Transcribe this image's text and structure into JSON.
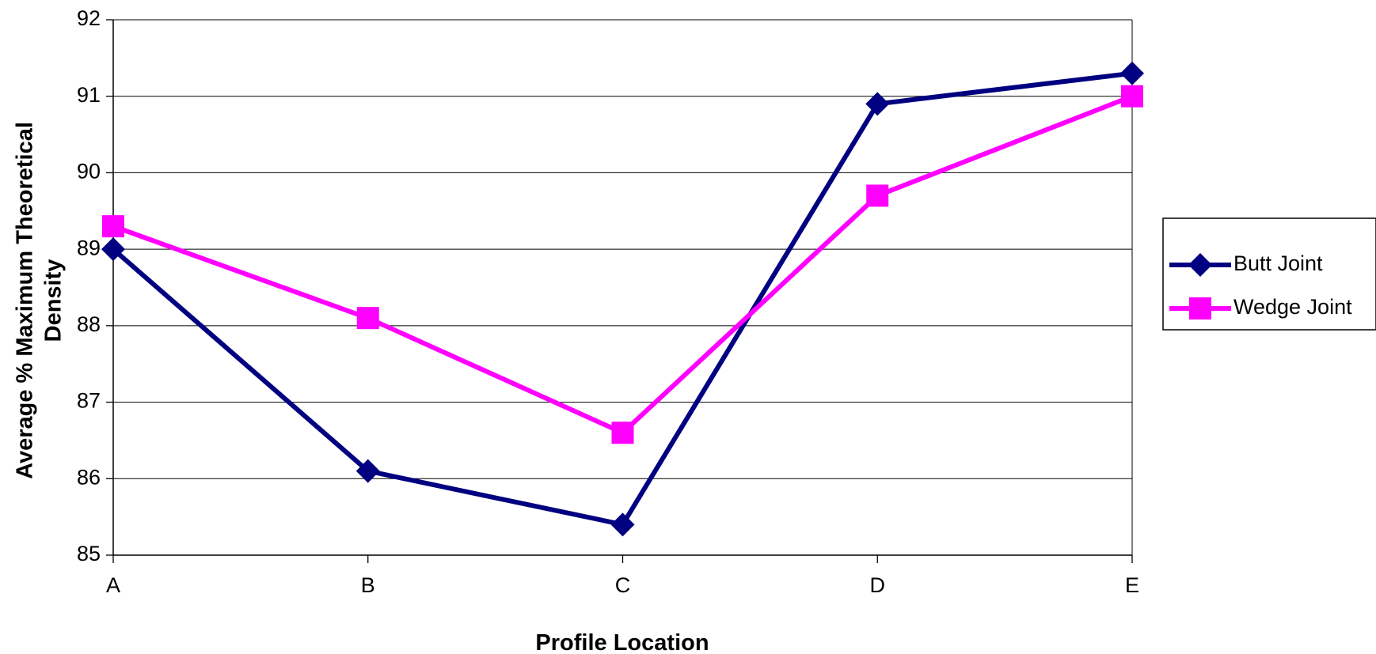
{
  "chart_data": {
    "type": "line",
    "title": "",
    "xlabel": "Profile Location",
    "ylabel": "Average % Maximum Theoretical Density",
    "ylabel_lines": [
      "Average % Maximum Theoretical",
      "Density"
    ],
    "categories": [
      "A",
      "B",
      "C",
      "D",
      "E"
    ],
    "ylim": [
      85,
      92
    ],
    "yticks": [
      "85",
      "86",
      "87",
      "88",
      "89",
      "90",
      "91",
      "92"
    ],
    "grid": true,
    "legend_position": "right",
    "series": [
      {
        "name": "Butt Joint",
        "color": "#000080",
        "marker": "diamond",
        "values": [
          89.0,
          86.1,
          85.4,
          90.9,
          91.3
        ]
      },
      {
        "name": "Wedge Joint",
        "color": "#FF00FF",
        "marker": "square",
        "values": [
          89.3,
          88.1,
          86.6,
          89.7,
          91.0
        ]
      }
    ]
  }
}
